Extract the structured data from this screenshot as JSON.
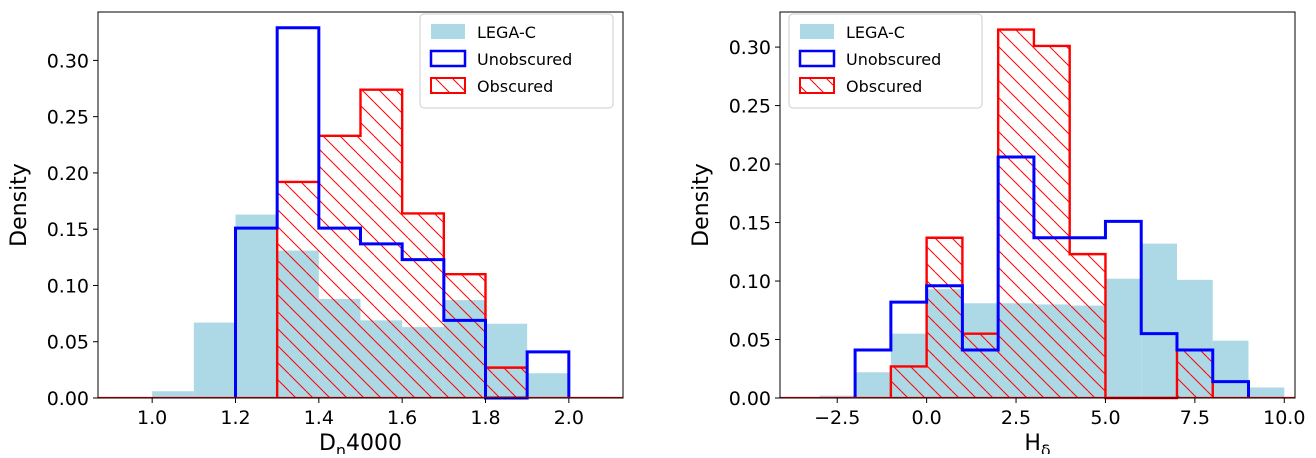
{
  "chart_data": [
    {
      "type": "bar",
      "xlabel": "D",
      "xlabel_sub": "n",
      "xlabel_rest": "4000",
      "ylabel": "Density",
      "xlim": [
        0.87,
        2.13
      ],
      "ylim": [
        0,
        0.343
      ],
      "xticks": [
        1.0,
        1.2,
        1.4,
        1.6,
        1.8,
        2.0
      ],
      "xtick_labels": [
        "1.0",
        "1.2",
        "1.4",
        "1.6",
        "1.8",
        "2.0"
      ],
      "yticks": [
        0.0,
        0.05,
        0.1,
        0.15,
        0.2,
        0.25,
        0.3
      ],
      "ytick_labels": [
        "0.00",
        "0.05",
        "0.10",
        "0.15",
        "0.20",
        "0.25",
        "0.30"
      ],
      "legend_position": "top-right",
      "colors": {
        "lega": "#add8e6",
        "unobscured": "#0000ff",
        "obscured": "#ff0000"
      },
      "series": [
        {
          "name": "LEGA-C",
          "style": "filled",
          "bin_edges": [
            1.0,
            1.1,
            1.2,
            1.3,
            1.4,
            1.5,
            1.6,
            1.7,
            1.8,
            1.9,
            2.0
          ],
          "values": [
            0.006,
            0.067,
            0.163,
            0.131,
            0.088,
            0.069,
            0.063,
            0.087,
            0.066,
            0.022
          ]
        },
        {
          "name": "Unobscured",
          "style": "step",
          "bin_edges": [
            1.2,
            1.3,
            1.4,
            1.5,
            1.6,
            1.7,
            1.8,
            1.9,
            2.0
          ],
          "values": [
            0.151,
            0.329,
            0.151,
            0.137,
            0.123,
            0.069,
            0.0,
            0.041
          ]
        },
        {
          "name": "Obscured",
          "style": "hatched",
          "bin_edges": [
            1.3,
            1.4,
            1.5,
            1.6,
            1.7,
            1.8,
            1.9
          ],
          "values": [
            0.192,
            0.233,
            0.274,
            0.164,
            0.11,
            0.027
          ]
        }
      ]
    },
    {
      "type": "bar",
      "xlabel": "H",
      "xlabel_sub": "δ",
      "xlabel_rest": "",
      "ylabel": "Density",
      "xlim": [
        -4.1,
        10.3
      ],
      "ylim": [
        0,
        0.33
      ],
      "xticks": [
        -2.5,
        0.0,
        2.5,
        5.0,
        7.5,
        10.0
      ],
      "xtick_labels": [
        "−2.5",
        "0.0",
        "2.5",
        "5.0",
        "7.5",
        "10.0"
      ],
      "yticks": [
        0.0,
        0.05,
        0.1,
        0.15,
        0.2,
        0.25,
        0.3
      ],
      "ytick_labels": [
        "0.00",
        "0.05",
        "0.10",
        "0.15",
        "0.20",
        "0.25",
        "0.30"
      ],
      "legend_position": "top-left",
      "colors": {
        "lega": "#add8e6",
        "unobscured": "#0000ff",
        "obscured": "#ff0000"
      },
      "series": [
        {
          "name": "LEGA-C",
          "style": "filled",
          "bin_edges": [
            -3,
            -2,
            -1,
            0,
            1,
            2,
            3,
            4,
            5,
            6,
            7,
            8,
            9,
            10
          ],
          "values": [
            0.002,
            0.022,
            0.055,
            0.093,
            0.081,
            0.081,
            0.08,
            0.079,
            0.102,
            0.132,
            0.101,
            0.049,
            0.009
          ]
        },
        {
          "name": "Unobscured",
          "style": "step",
          "bin_edges": [
            -2,
            -1,
            0,
            1,
            2,
            3,
            4,
            5,
            6,
            7,
            8,
            9
          ],
          "values": [
            0.041,
            0.082,
            0.096,
            0.041,
            0.206,
            0.137,
            0.137,
            0.151,
            0.055,
            0.041,
            0.014
          ]
        },
        {
          "name": "Obscured",
          "style": "hatched",
          "bin_edges": [
            -1,
            0,
            1,
            2,
            3,
            4,
            5,
            6,
            7,
            8
          ],
          "values": [
            0.027,
            0.137,
            0.055,
            0.315,
            0.301,
            0.123,
            0.0,
            0.0,
            0.041
          ]
        }
      ]
    }
  ]
}
